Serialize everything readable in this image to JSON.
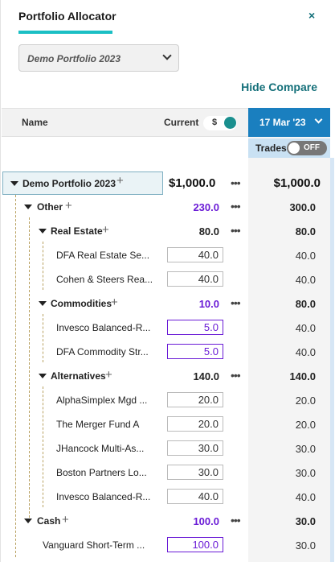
{
  "panel": {
    "title": "Portfolio Allocator",
    "close": "×",
    "portfolio_select": "Demo Portfolio 2023",
    "hide_compare": "Hide Compare"
  },
  "header": {
    "name": "Name",
    "current": "Current",
    "dollar_toggle": "$",
    "date": "17 Mar '23",
    "trades": "Trades",
    "trades_toggle": "OFF"
  },
  "colors": {
    "accent_teal": "#1bbfc4",
    "link": "#15707a",
    "date_header": "#1a7fbf",
    "purple_value": "#6a1bd6"
  },
  "root": {
    "name": "Demo Portfolio 2023",
    "current": "$1,000.0",
    "compare": "$1,000.0"
  },
  "rows": [
    {
      "name": "Other",
      "current": "230.0",
      "compare": "300.0"
    },
    {
      "name": "Real Estate",
      "current": "80.0",
      "compare": "80.0"
    },
    {
      "name": "DFA Real Estate Se...",
      "current": "40.0",
      "compare": "40.0"
    },
    {
      "name": "Cohen & Steers Rea...",
      "current": "40.0",
      "compare": "40.0"
    },
    {
      "name": "Commodities",
      "current": "10.0",
      "compare": "80.0"
    },
    {
      "name": "Invesco Balanced-R...",
      "current": "5.0",
      "compare": "40.0"
    },
    {
      "name": "DFA Commodity Str...",
      "current": "5.0",
      "compare": "40.0"
    },
    {
      "name": "Alternatives",
      "current": "140.0",
      "compare": "140.0"
    },
    {
      "name": "AlphaSimplex Mgd ...",
      "current": "20.0",
      "compare": "20.0"
    },
    {
      "name": "The Merger Fund A",
      "current": "20.0",
      "compare": "20.0"
    },
    {
      "name": "JHancock Multi-As...",
      "current": "30.0",
      "compare": "30.0"
    },
    {
      "name": "Boston Partners Lo...",
      "current": "30.0",
      "compare": "30.0"
    },
    {
      "name": "Invesco Balanced-R...",
      "current": "40.0",
      "compare": "40.0"
    },
    {
      "name": "Cash",
      "current": "100.0",
      "compare": "30.0"
    },
    {
      "name": "Vanguard Short-Term ...",
      "current": "100.0",
      "compare": "30.0"
    }
  ]
}
